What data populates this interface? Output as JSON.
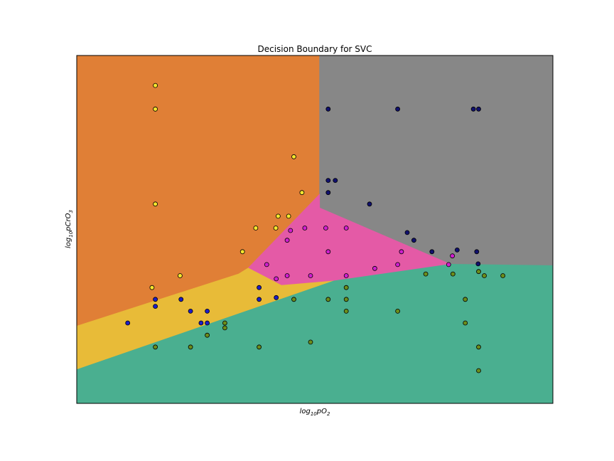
{
  "chart_data": {
    "type": "scatter",
    "title": "Decision Boundary for SVC",
    "xlabel": {
      "prefix": "log",
      "sub": "10",
      "suffix": "pO",
      "sub2": "2"
    },
    "ylabel": {
      "prefix": "log",
      "sub": "10",
      "suffix": "pCrO",
      "sub2": "3"
    },
    "xlim": [
      0,
      100
    ],
    "ylim": [
      0,
      100
    ],
    "ticks": "none",
    "grid": false,
    "legend": "none",
    "regions": [
      {
        "name": "orange",
        "color": "#e07f36",
        "polygon": [
          [
            0,
            0
          ],
          [
            0,
            100
          ],
          [
            51,
            100
          ],
          [
            51,
            25.1
          ],
          [
            36,
            26.8
          ],
          [
            0,
            22.2
          ]
        ]
      },
      {
        "name": "gray",
        "color": "#878787",
        "polygon": [
          [
            51,
            100
          ],
          [
            100,
            100
          ],
          [
            100,
            39.6
          ],
          [
            78.5,
            39.6
          ],
          [
            51,
            56.2
          ]
        ]
      },
      {
        "name": "pink",
        "color": "#e45aa6",
        "polygon": [
          [
            51,
            60.1
          ],
          [
            51,
            56.2
          ],
          [
            78.5,
            40.0
          ],
          [
            54,
            35.2
          ],
          [
            43,
            33.9
          ],
          [
            36,
            38.9
          ]
        ]
      },
      {
        "name": "yellow",
        "color": "#e8bb38",
        "polygon": [
          [
            0,
            22.2
          ],
          [
            0,
            9.7
          ],
          [
            54,
            35.2
          ],
          [
            43,
            33.9
          ],
          [
            36,
            38.9
          ],
          [
            34,
            37.2
          ]
        ]
      },
      {
        "name": "teal",
        "color": "#4aaf90",
        "polygon": [
          [
            0,
            0
          ],
          [
            100,
            0
          ],
          [
            100,
            39.6
          ],
          [
            78.5,
            40.0
          ],
          [
            54,
            35.2
          ],
          [
            0,
            9.7
          ]
        ]
      }
    ],
    "series": [
      {
        "color": "#f5e62e",
        "points": [
          [
            16.5,
            91.4
          ],
          [
            16.5,
            84.6
          ],
          [
            16.5,
            57.3
          ],
          [
            45.6,
            70.9
          ],
          [
            47.3,
            60.6
          ],
          [
            44.5,
            53.8
          ],
          [
            42.3,
            53.8
          ],
          [
            37.6,
            50.4
          ],
          [
            41.8,
            50.4
          ],
          [
            34.8,
            43.6
          ],
          [
            21.7,
            36.7
          ],
          [
            15.8,
            33.3
          ]
        ]
      },
      {
        "color": "#10106e",
        "points": [
          [
            52.8,
            84.6
          ],
          [
            67.4,
            84.6
          ],
          [
            83.3,
            84.6
          ],
          [
            84.4,
            84.6
          ],
          [
            52.8,
            64.1
          ],
          [
            54.3,
            64.1
          ],
          [
            52.8,
            60.6
          ],
          [
            61.5,
            57.3
          ],
          [
            69.4,
            49.1
          ],
          [
            70.8,
            46.9
          ],
          [
            74.6,
            43.6
          ],
          [
            79.9,
            44.1
          ],
          [
            84.0,
            43.6
          ],
          [
            84.3,
            40.1
          ]
        ]
      },
      {
        "color": "#1d1dc7",
        "points": [
          [
            16.5,
            29.9
          ],
          [
            16.5,
            27.9
          ],
          [
            21.9,
            29.9
          ],
          [
            23.9,
            26.5
          ],
          [
            27.4,
            26.5
          ],
          [
            10.7,
            23.1
          ],
          [
            26.1,
            23.1
          ],
          [
            27.4,
            23.1
          ],
          [
            38.3,
            33.3
          ],
          [
            38.3,
            29.9
          ],
          [
            41.9,
            30.4
          ]
        ]
      },
      {
        "color": "#d01fd0",
        "points": [
          [
            44.9,
            49.7
          ],
          [
            47.9,
            50.4
          ],
          [
            52.3,
            50.4
          ],
          [
            56.6,
            50.4
          ],
          [
            44.2,
            46.9
          ],
          [
            52.8,
            43.6
          ],
          [
            68.2,
            43.6
          ],
          [
            39.9,
            39.9
          ],
          [
            67.4,
            39.9
          ],
          [
            62.6,
            38.8
          ],
          [
            44.2,
            36.7
          ],
          [
            49.1,
            36.7
          ],
          [
            56.6,
            36.7
          ],
          [
            41.9,
            35.8
          ],
          [
            78.9,
            42.4
          ],
          [
            78.1,
            39.9
          ]
        ]
      },
      {
        "color": "#6b8d1b",
        "points": [
          [
            73.3,
            37.2
          ],
          [
            79.0,
            37.2
          ],
          [
            84.4,
            37.9
          ],
          [
            85.6,
            36.7
          ],
          [
            89.5,
            36.7
          ],
          [
            56.6,
            33.3
          ],
          [
            45.6,
            29.9
          ],
          [
            52.8,
            29.9
          ],
          [
            56.6,
            29.9
          ],
          [
            56.6,
            26.5
          ],
          [
            67.4,
            26.5
          ],
          [
            81.6,
            29.9
          ],
          [
            81.6,
            23.1
          ],
          [
            31.1,
            23.1
          ],
          [
            31.1,
            21.7
          ],
          [
            27.4,
            19.6
          ],
          [
            16.5,
            16.2
          ],
          [
            23.9,
            16.2
          ],
          [
            38.3,
            16.2
          ],
          [
            49.1,
            17.6
          ],
          [
            84.4,
            16.2
          ],
          [
            84.4,
            9.4
          ]
        ]
      }
    ]
  }
}
